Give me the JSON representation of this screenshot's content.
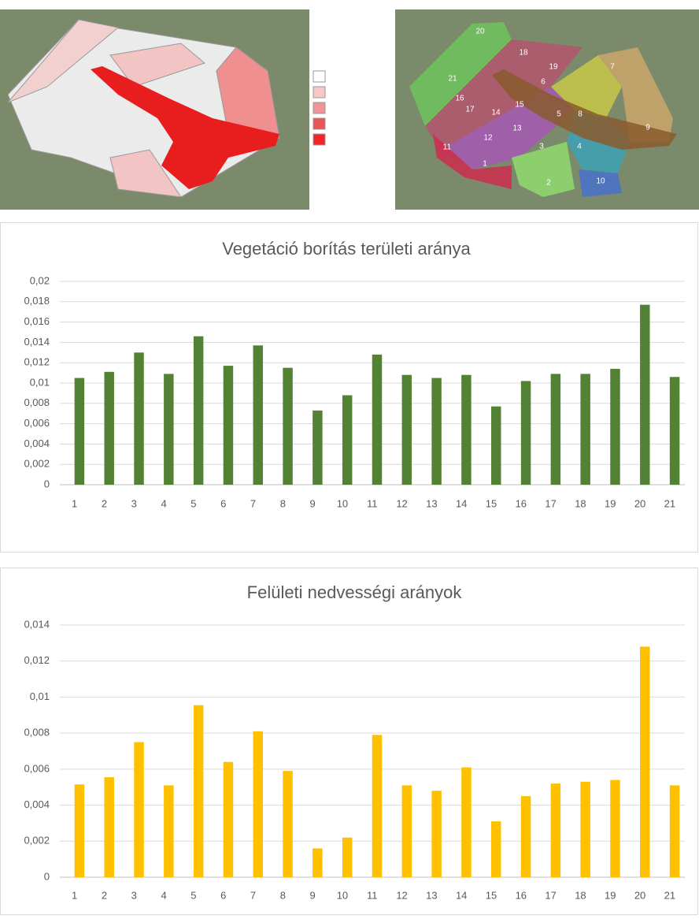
{
  "map_labels": [
    "1",
    "2",
    "3",
    "4",
    "5",
    "6",
    "7",
    "8",
    "9",
    "10",
    "11",
    "12",
    "13",
    "14",
    "15",
    "16",
    "17",
    "18",
    "19",
    "20",
    "21"
  ],
  "chart_data": [
    {
      "type": "bar",
      "title": "Vegetáció borítás területi aránya",
      "categories": [
        "1",
        "2",
        "3",
        "4",
        "5",
        "6",
        "7",
        "8",
        "9",
        "10",
        "11",
        "12",
        "13",
        "14",
        "15",
        "16",
        "17",
        "18",
        "19",
        "20",
        "21"
      ],
      "values": [
        0.0105,
        0.0111,
        0.013,
        0.0109,
        0.0146,
        0.0117,
        0.0137,
        0.0115,
        0.0073,
        0.0088,
        0.0128,
        0.0108,
        0.0105,
        0.0108,
        0.0077,
        0.0102,
        0.0109,
        0.0109,
        0.0114,
        0.0177,
        0.0106
      ],
      "color": "#548235",
      "ylim": [
        0,
        0.02
      ],
      "yticks": [
        0,
        {
          "value": 0.002,
          "label": "0,002"
        },
        {
          "value": 0.004,
          "label": "0,004"
        },
        {
          "value": 0.006,
          "label": "0,006"
        },
        {
          "value": 0.008,
          "label": "0,008"
        },
        {
          "value": 0.01,
          "label": "0,01"
        },
        {
          "value": 0.012,
          "label": "0,012"
        },
        {
          "value": 0.014,
          "label": "0,014"
        },
        {
          "value": 0.016,
          "label": "0,016"
        },
        {
          "value": 0.018,
          "label": "0,018"
        },
        {
          "value": 0.02,
          "label": "0,02"
        }
      ],
      "grid": true
    },
    {
      "type": "bar",
      "title": "Felületi nedvességi arányok",
      "categories": [
        "1",
        "2",
        "3",
        "4",
        "5",
        "6",
        "7",
        "8",
        "9",
        "10",
        "11",
        "12",
        "13",
        "14",
        "15",
        "16",
        "17",
        "18",
        "19",
        "20",
        "21"
      ],
      "values": [
        0.00515,
        0.00555,
        0.0075,
        0.0051,
        0.00955,
        0.0064,
        0.0081,
        0.0059,
        0.0016,
        0.0022,
        0.0079,
        0.0051,
        0.0048,
        0.0061,
        0.0031,
        0.0045,
        0.0052,
        0.0053,
        0.0054,
        0.0128,
        0.0051
      ],
      "color": "#ffc000",
      "ylim": [
        0,
        0.014
      ],
      "yticks": [
        0,
        {
          "value": 0.002,
          "label": "0,002"
        },
        {
          "value": 0.004,
          "label": "0,004"
        },
        {
          "value": 0.006,
          "label": "0,006"
        },
        {
          "value": 0.008,
          "label": "0,008"
        },
        {
          "value": 0.01,
          "label": "0,01"
        },
        {
          "value": 0.012,
          "label": "0,012"
        },
        {
          "value": 0.014,
          "label": "0,014"
        }
      ],
      "grid": true
    }
  ]
}
